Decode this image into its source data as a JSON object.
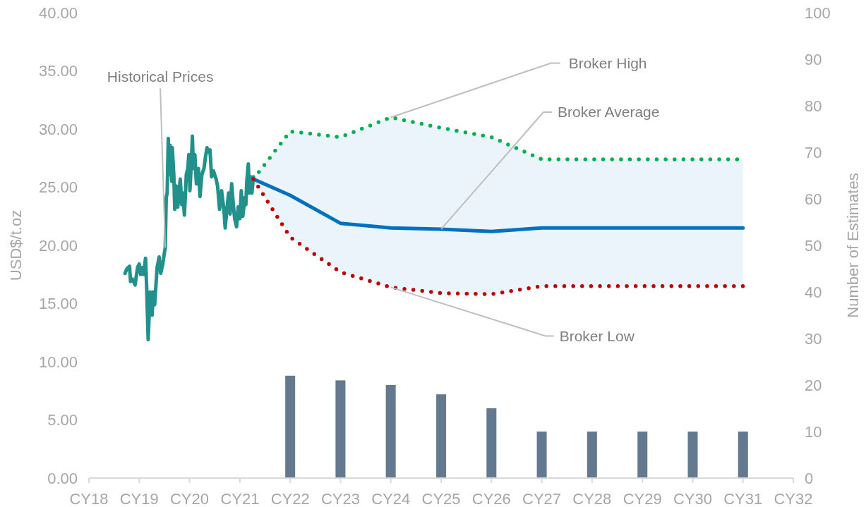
{
  "chart_data": {
    "type": "line",
    "ylabel": "USD$/t.oz",
    "y2label": "Number of Estimates",
    "xlim": [
      "2018",
      "2032"
    ],
    "xticks": [
      {
        "value": "2018",
        "label": "CY18"
      },
      {
        "value": "2019",
        "label": "CY19"
      },
      {
        "value": "2020",
        "label": "CY20"
      },
      {
        "value": "2021",
        "label": "CY21"
      },
      {
        "value": "2022",
        "label": "CY22"
      },
      {
        "value": "2023",
        "label": "CY23"
      },
      {
        "value": "2024",
        "label": "CY24"
      },
      {
        "value": "2025",
        "label": "CY25"
      },
      {
        "value": "2026",
        "label": "CY26"
      },
      {
        "value": "2027",
        "label": "CY27"
      },
      {
        "value": "2028",
        "label": "CY28"
      },
      {
        "value": "2029",
        "label": "CY29"
      },
      {
        "value": "2030",
        "label": "CY30"
      },
      {
        "value": "2031",
        "label": "CY31"
      },
      {
        "value": "2032",
        "label": "CY32"
      }
    ],
    "ylim": [
      0,
      40
    ],
    "yticks": [
      {
        "value": 0,
        "label": "0.00"
      },
      {
        "value": 5,
        "label": "5.00"
      },
      {
        "value": 10,
        "label": "10.00"
      },
      {
        "value": 15,
        "label": "15.00"
      },
      {
        "value": 20,
        "label": "20.00"
      },
      {
        "value": 25,
        "label": "25.00"
      },
      {
        "value": 30,
        "label": "30.00"
      },
      {
        "value": 35,
        "label": "35.00"
      },
      {
        "value": 40,
        "label": "40.00"
      }
    ],
    "y2lim": [
      0,
      100
    ],
    "y2ticks": [
      0,
      10,
      20,
      30,
      40,
      50,
      60,
      70,
      80,
      90,
      100
    ],
    "series": [
      {
        "name": "Historical Prices",
        "color": "#22908b",
        "x": [
          "2018-09-20",
          "2018-10-04",
          "2018-10-23",
          "2018-10-30",
          "2018-11-14",
          "2018-12-02",
          "2018-12-20",
          "2019-01-01",
          "2019-01-11",
          "2019-01-26",
          "2019-02-02",
          "2019-02-16",
          "2019-02-24",
          "2019-03-07",
          "2019-03-21",
          "2019-04-05",
          "2019-04-12",
          "2019-04-23",
          "2019-05-11",
          "2019-05-26",
          "2019-06-06",
          "2019-06-21",
          "2019-07-02",
          "2019-07-09",
          "2019-07-16",
          "2019-07-23",
          "2019-07-31",
          "2019-08-03",
          "2019-08-14",
          "2019-08-25",
          "2019-08-29",
          "2019-09-09",
          "2019-09-16",
          "2019-09-27",
          "2019-10-08",
          "2019-10-26",
          "2019-11-06",
          "2019-11-14",
          "2019-11-25",
          "2019-12-02",
          "2019-12-09",
          "2019-12-20",
          "2019-12-27",
          "2020-01-04",
          "2020-01-15",
          "2020-01-22",
          "2020-01-29",
          "2020-02-09",
          "2020-02-20",
          "2020-03-06",
          "2020-03-17",
          "2020-03-31",
          "2020-04-15",
          "2020-04-26",
          "2020-05-07",
          "2020-05-18",
          "2020-05-29",
          "2020-06-09",
          "2020-06-23",
          "2020-07-12",
          "2020-07-23",
          "2020-08-06",
          "2020-08-21",
          "2020-09-08",
          "2020-09-16",
          "2020-09-30",
          "2020-10-11",
          "2020-10-22",
          "2020-11-02",
          "2020-11-17",
          "2020-11-24",
          "2020-12-08",
          "2020-12-19",
          "2021-01-01",
          "2021-01-11",
          "2021-01-22",
          "2021-02-06",
          "2021-02-13",
          "2021-02-20",
          "2021-03-03",
          "2021-03-10",
          "2021-03-21",
          "2021-03-29",
          "2021-04-09"
        ],
        "values": [
          17.6,
          18.0,
          18.2,
          16.9,
          17.1,
          16.6,
          18.1,
          18.4,
          17.5,
          18.1,
          17.5,
          18.9,
          16.4,
          11.9,
          16.0,
          14.0,
          16.0,
          14.9,
          18.1,
          19.0,
          17.6,
          18.4,
          19.3,
          19.8,
          24.1,
          24.5,
          29.2,
          26.1,
          28.6,
          25.5,
          28.4,
          26.1,
          23.1,
          25.1,
          23.3,
          25.7,
          23.5,
          24.5,
          22.6,
          24.3,
          26.1,
          26.6,
          27.8,
          24.7,
          27.2,
          29.4,
          26.6,
          27.8,
          25.3,
          26.6,
          24.2,
          26.1,
          26.6,
          27.6,
          28.4,
          28.0,
          28.2,
          25.9,
          26.4,
          25.7,
          25.1,
          23.1,
          24.7,
          22.9,
          21.5,
          23.3,
          24.5,
          22.7,
          25.3,
          23.1,
          22.3,
          21.6,
          23.3,
          22.3,
          24.7,
          22.5,
          24.1,
          23.5,
          25.5,
          27.0,
          24.5,
          25.9,
          24.5,
          25.9
        ]
      },
      {
        "name": "Broker High",
        "line_style": "dotted",
        "color": "#00b050",
        "x": [
          "2021-04-09",
          "2022",
          "2023",
          "2024",
          "2025",
          "2026",
          "2027",
          "2028",
          "2029",
          "2030",
          "2031"
        ],
        "values": [
          25.7,
          29.8,
          29.3,
          31.0,
          30.1,
          29.3,
          27.4,
          27.4,
          27.4,
          27.4,
          27.4
        ]
      },
      {
        "name": "Broker Average",
        "color": "#0070c0",
        "x": [
          "2021-04-09",
          "2022",
          "2023",
          "2024",
          "2025",
          "2026",
          "2027",
          "2028",
          "2029",
          "2030",
          "2031"
        ],
        "values": [
          25.7,
          24.3,
          21.9,
          21.5,
          21.4,
          21.2,
          21.5,
          21.5,
          21.5,
          21.5,
          21.5
        ],
        "lower": [
          25.7,
          20.7,
          17.7,
          16.4,
          15.9,
          15.8,
          16.5,
          16.5,
          16.5,
          16.5,
          16.5
        ],
        "upper": [
          25.7,
          29.8,
          29.3,
          31.0,
          30.1,
          29.3,
          27.4,
          27.4,
          27.4,
          27.4,
          27.4
        ]
      },
      {
        "name": "Broker Low",
        "line_style": "dotted",
        "color": "#c00000",
        "x": [
          "2021-04-09",
          "2022",
          "2023",
          "2024",
          "2025",
          "2026",
          "2027",
          "2028",
          "2029",
          "2030",
          "2031"
        ],
        "values": [
          25.7,
          20.7,
          17.7,
          16.4,
          15.9,
          15.8,
          16.5,
          16.5,
          16.5,
          16.5,
          16.5
        ]
      },
      {
        "type": "bar",
        "axis": "y2",
        "color": "#627990",
        "x": [
          "2022",
          "2023",
          "2024",
          "2025",
          "2026",
          "2027",
          "2028",
          "2029",
          "2030",
          "2031"
        ],
        "values": [
          22,
          21,
          20,
          18,
          15,
          10,
          10,
          10,
          10,
          10
        ]
      }
    ]
  }
}
